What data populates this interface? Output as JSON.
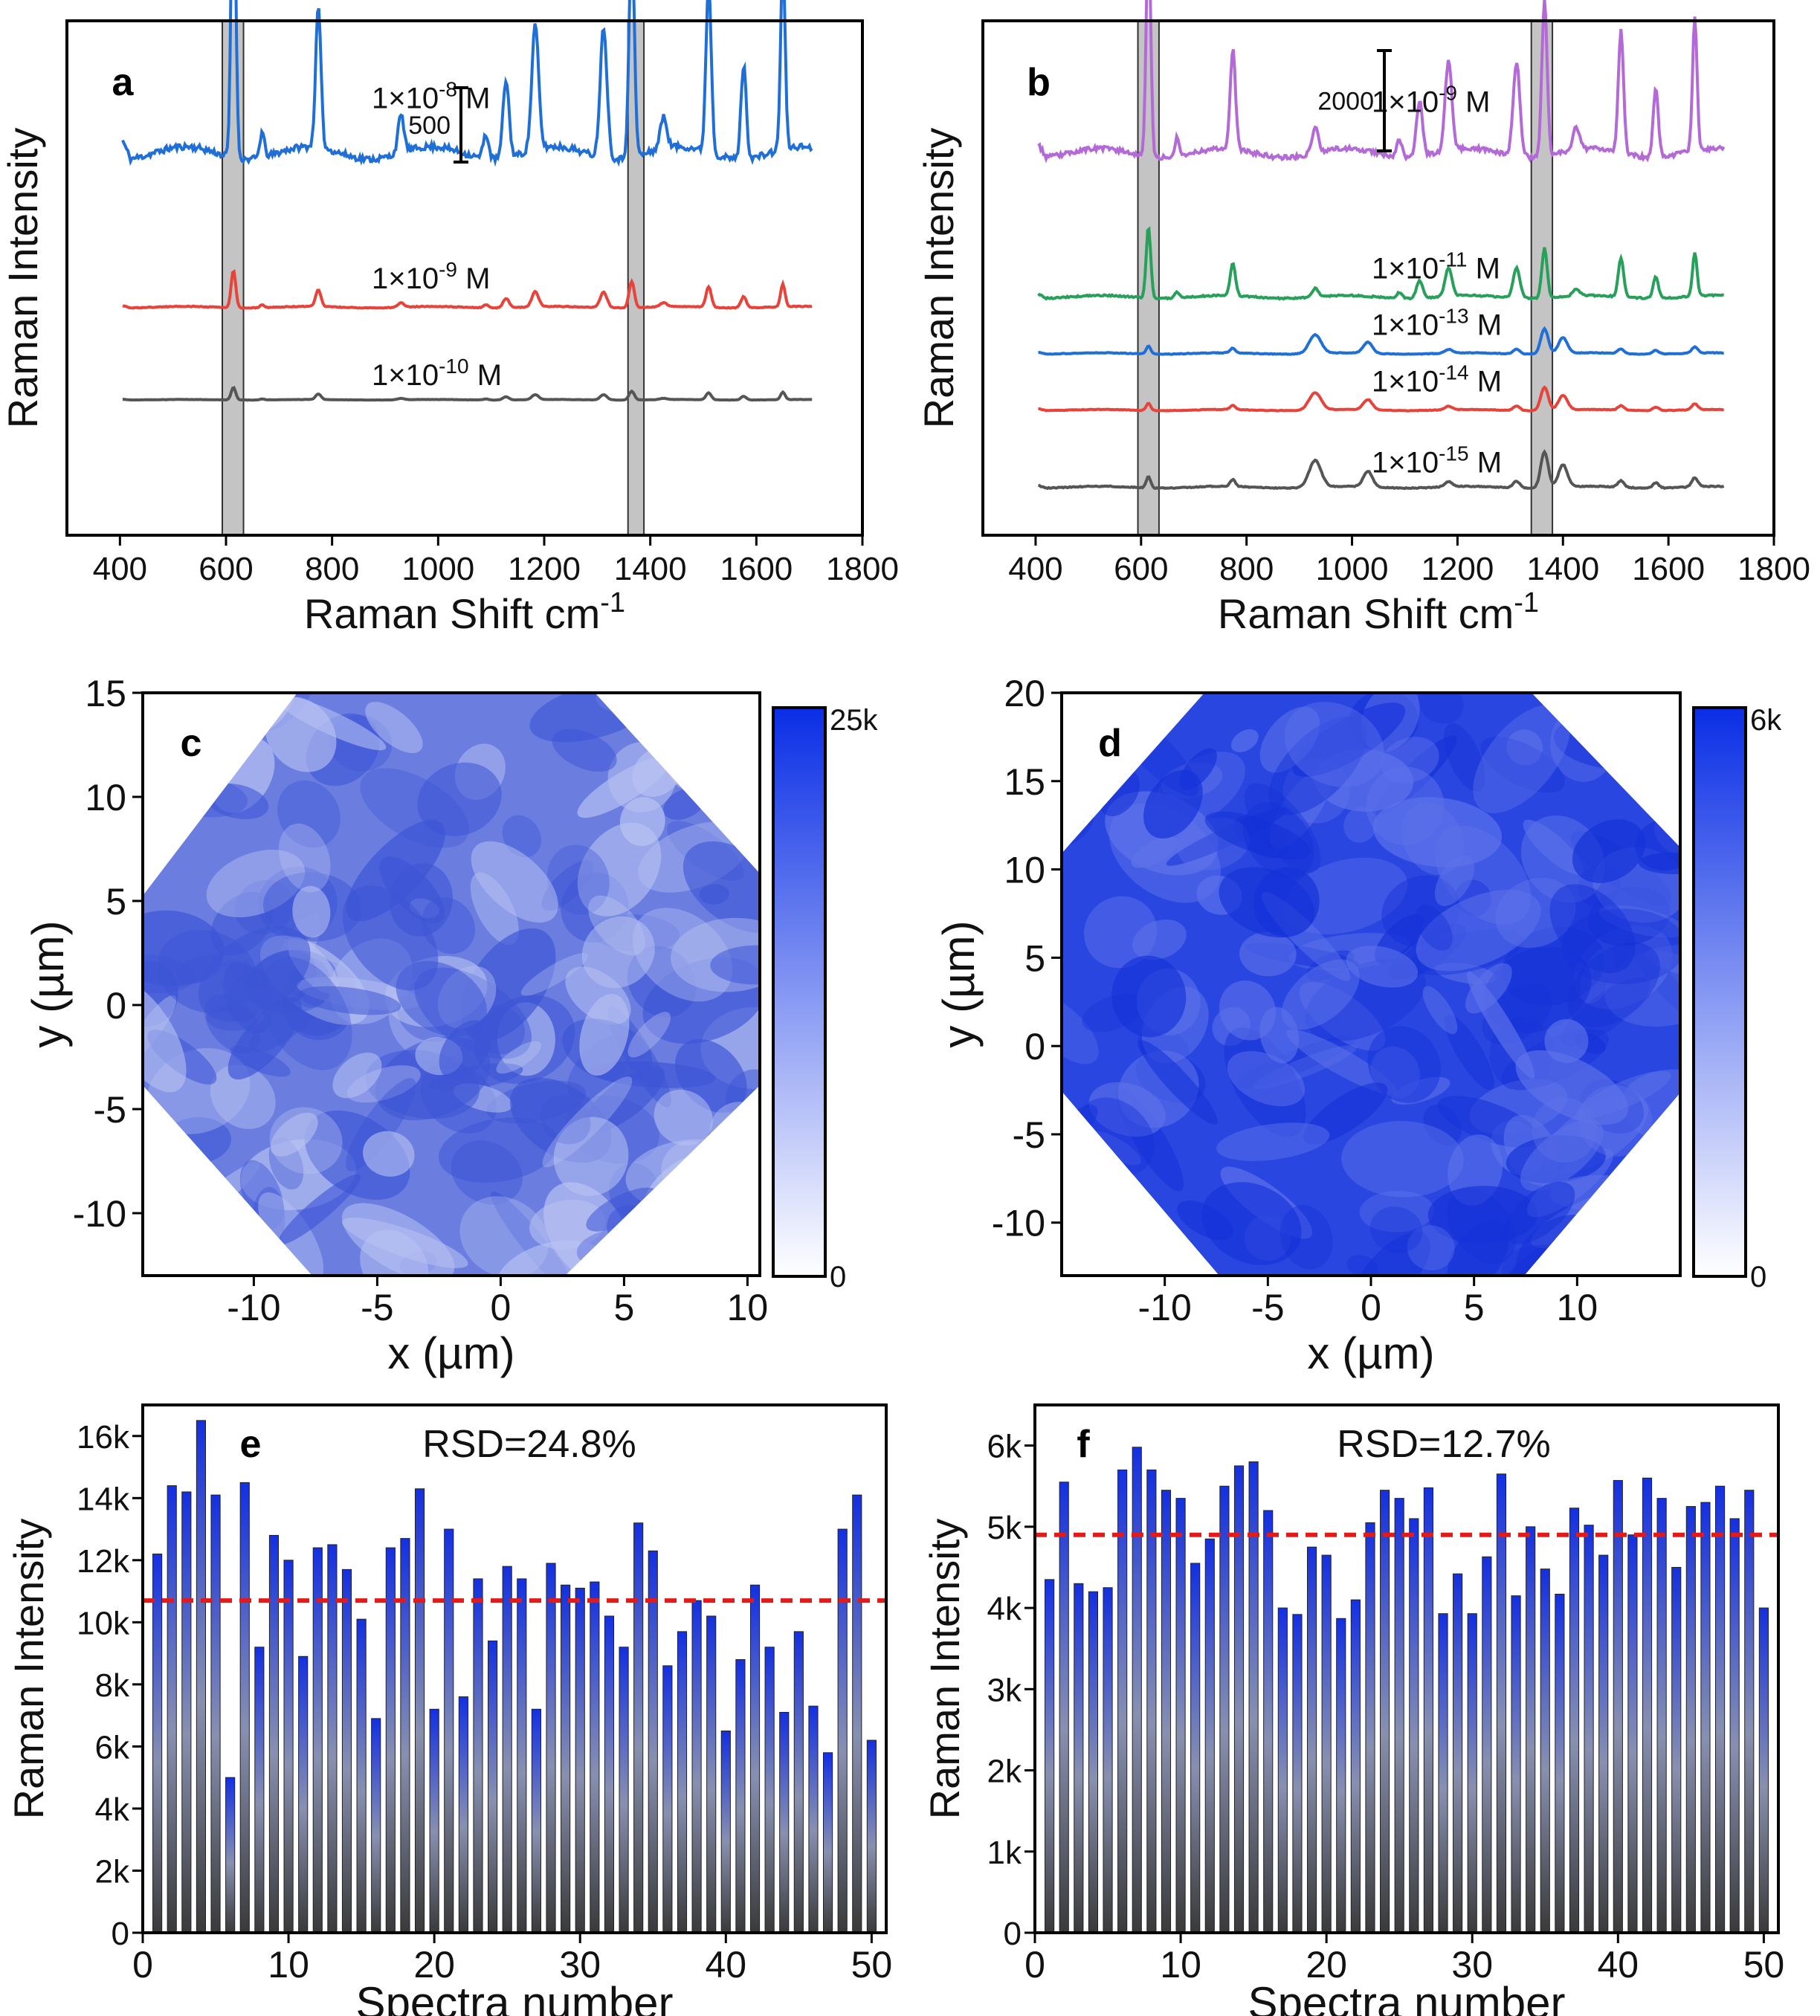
{
  "chart_data": [
    {
      "id": "a",
      "type": "line",
      "panel_label": "a",
      "xlabel": "Raman Shift cm",
      "xlabel_sup": "-1",
      "ylabel": "Raman Intensity",
      "xlim": [
        300,
        1800
      ],
      "xticks": [
        400,
        600,
        800,
        1000,
        1200,
        1400,
        1600,
        1800
      ],
      "scale_bar_label": "500",
      "highlight_bands": [
        [
          593,
          633
        ],
        [
          1358,
          1388
        ]
      ],
      "series": [
        {
          "name": "1×10",
          "exp": "-8",
          "unit": " M",
          "color": "#1f6fd6",
          "level": 0.7,
          "amp": 1.0
        },
        {
          "name": "1×10",
          "exp": "-9",
          "unit": " M",
          "color": "#e8433a",
          "level": 0.4,
          "amp": 0.12
        },
        {
          "name": "1×10",
          "exp": "-10",
          "unit": " M",
          "color": "#555555",
          "level": 0.22,
          "amp": 0.04
        }
      ]
    },
    {
      "id": "b",
      "type": "line",
      "panel_label": "b",
      "xlabel": "Raman Shift cm",
      "xlabel_sup": "-1",
      "ylabel": "Raman Intensity",
      "xlim": [
        300,
        1800
      ],
      "xticks": [
        400,
        600,
        800,
        1000,
        1200,
        1400,
        1600,
        1800
      ],
      "scale_bar_label": "2000",
      "highlight_bands": [
        [
          594,
          634
        ],
        [
          1340,
          1380
        ]
      ],
      "series": [
        {
          "name": "1×10",
          "exp": "-9",
          "unit": " M",
          "color": "#b46ad6",
          "level": 0.7,
          "amp": 1.0
        },
        {
          "name": "1×10",
          "exp": "-11",
          "unit": " M",
          "color": "#27a05a",
          "level": 0.42,
          "amp": 0.32
        },
        {
          "name": "1×10",
          "exp": "-13",
          "unit": " M",
          "color": "#1f6fd6",
          "level": 0.31,
          "amp": 0.14
        },
        {
          "name": "1×10",
          "exp": "-14",
          "unit": " M",
          "color": "#e8433a",
          "level": 0.2,
          "amp": 0.13
        },
        {
          "name": "1×10",
          "exp": "-15",
          "unit": " M",
          "color": "#555555",
          "level": 0.05,
          "amp": 0.2
        }
      ]
    },
    {
      "id": "c",
      "type": "heatmap",
      "panel_label": "c",
      "xlabel": "x (µm)",
      "ylabel": "y (µm)",
      "xlim": [
        -14.5,
        10.5
      ],
      "ylim": [
        -13,
        15
      ],
      "xticks": [
        -10,
        -5,
        0,
        5,
        10
      ],
      "yticks": [
        -10,
        -5,
        0,
        5,
        10,
        15
      ],
      "colorbar_max": "25k",
      "colorbar_min": "0",
      "mean_level": 0.55
    },
    {
      "id": "d",
      "type": "heatmap",
      "panel_label": "d",
      "xlabel": "x (µm)",
      "ylabel": "y (µm)",
      "xlim": [
        -15,
        15
      ],
      "ylim": [
        -13,
        20
      ],
      "xticks": [
        -10,
        -5,
        0,
        5,
        10
      ],
      "yticks": [
        -10,
        -5,
        0,
        5,
        10,
        15,
        20
      ],
      "colorbar_max": "6k",
      "colorbar_min": "0",
      "mean_level": 0.85
    },
    {
      "id": "e",
      "type": "bar",
      "panel_label": "e",
      "annotation": "RSD=24.8%",
      "xlabel": "Spectra number",
      "ylabel": "Raman Intensity",
      "xlim": [
        0,
        51
      ],
      "ylim": [
        0,
        17000
      ],
      "xticks": [
        0,
        10,
        20,
        30,
        40,
        50
      ],
      "yticks": [
        0,
        2000,
        4000,
        6000,
        8000,
        10000,
        12000,
        14000,
        16000
      ],
      "yticklabels": [
        "0",
        "2k",
        "4k",
        "6k",
        "8k",
        "10k",
        "12k",
        "14k",
        "16k"
      ],
      "mean_line": 10700,
      "values": [
        12200,
        14400,
        14200,
        16500,
        14100,
        5000,
        14500,
        9200,
        12800,
        12000,
        8900,
        12400,
        12500,
        11700,
        10100,
        6900,
        12400,
        12700,
        14300,
        7200,
        13000,
        7600,
        11400,
        9400,
        11800,
        11400,
        7200,
        11900,
        11200,
        11100,
        11300,
        10200,
        9200,
        13200,
        12300,
        8600,
        9700,
        10700,
        10200,
        6500,
        8800,
        11200,
        9200,
        7100,
        9700,
        7300,
        5800,
        13000,
        14100,
        6200
      ]
    },
    {
      "id": "f",
      "type": "bar",
      "panel_label": "f",
      "annotation": "RSD=12.7%",
      "xlabel": "Spectra number",
      "ylabel": "Raman Intensity",
      "xlim": [
        0,
        51
      ],
      "ylim": [
        0,
        6500
      ],
      "xticks": [
        0,
        10,
        20,
        30,
        40,
        50
      ],
      "yticks": [
        0,
        1000,
        2000,
        3000,
        4000,
        5000,
        6000
      ],
      "yticklabels": [
        "0",
        "1k",
        "2k",
        "3k",
        "4k",
        "5k",
        "6k"
      ],
      "mean_line": 4900,
      "values": [
        4350,
        5550,
        4300,
        4200,
        4250,
        5700,
        5980,
        5700,
        5450,
        5350,
        4550,
        4850,
        5500,
        5750,
        5800,
        5200,
        4000,
        3920,
        4750,
        4650,
        3870,
        4100,
        5050,
        5450,
        5350,
        5100,
        5480,
        3930,
        4420,
        3930,
        4630,
        5650,
        4150,
        5000,
        4480,
        4170,
        5230,
        5020,
        4650,
        5570,
        4900,
        5600,
        5350,
        4500,
        5250,
        5300,
        5500,
        5100,
        5450,
        4000
      ]
    }
  ]
}
